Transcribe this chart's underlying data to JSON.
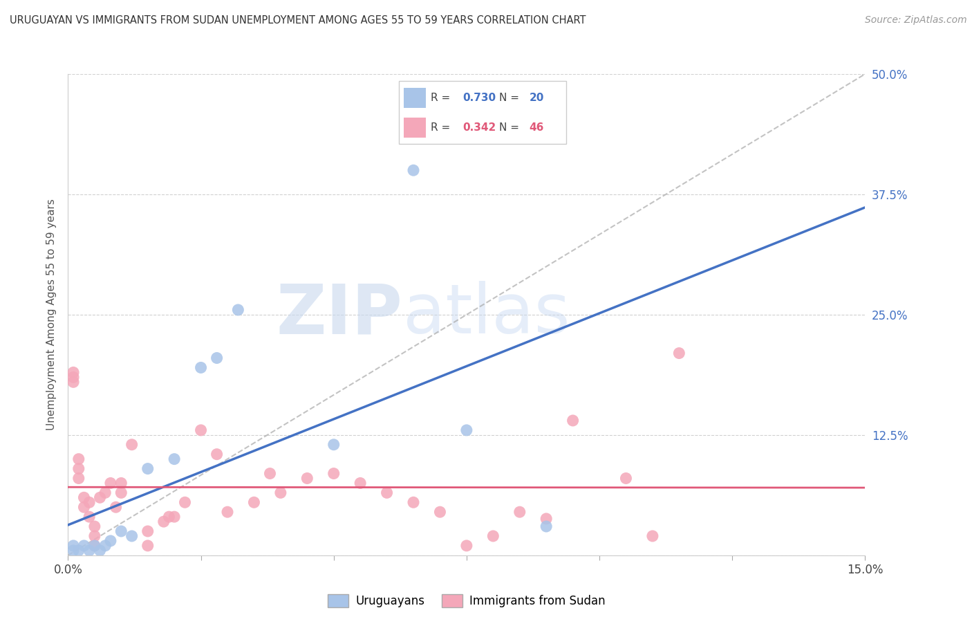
{
  "title": "URUGUAYAN VS IMMIGRANTS FROM SUDAN UNEMPLOYMENT AMONG AGES 55 TO 59 YEARS CORRELATION CHART",
  "source": "Source: ZipAtlas.com",
  "ylabel": "Unemployment Among Ages 55 to 59 years",
  "xlim": [
    0.0,
    0.15
  ],
  "ylim": [
    0.0,
    0.5
  ],
  "uruguayan_R": 0.73,
  "uruguayan_N": 20,
  "sudan_R": 0.342,
  "sudan_N": 46,
  "blue_color": "#a8c4e8",
  "blue_line_color": "#4472c4",
  "pink_color": "#f4a7b9",
  "pink_line_color": "#e05878",
  "watermark_zip": "ZIP",
  "watermark_atlas": "atlas",
  "uruguayan_x": [
    0.001,
    0.001,
    0.002,
    0.003,
    0.004,
    0.005,
    0.006,
    0.007,
    0.008,
    0.01,
    0.012,
    0.015,
    0.02,
    0.025,
    0.028,
    0.032,
    0.05,
    0.065,
    0.075,
    0.09
  ],
  "uruguayan_y": [
    0.005,
    0.01,
    0.005,
    0.01,
    0.005,
    0.01,
    0.005,
    0.01,
    0.015,
    0.025,
    0.02,
    0.09,
    0.1,
    0.195,
    0.205,
    0.255,
    0.115,
    0.4,
    0.13,
    0.03
  ],
  "sudan_x": [
    0.001,
    0.001,
    0.001,
    0.002,
    0.002,
    0.002,
    0.003,
    0.003,
    0.004,
    0.004,
    0.005,
    0.005,
    0.005,
    0.006,
    0.007,
    0.008,
    0.009,
    0.01,
    0.01,
    0.012,
    0.015,
    0.015,
    0.018,
    0.019,
    0.02,
    0.022,
    0.025,
    0.028,
    0.03,
    0.035,
    0.038,
    0.04,
    0.045,
    0.05,
    0.055,
    0.06,
    0.065,
    0.07,
    0.075,
    0.08,
    0.085,
    0.09,
    0.095,
    0.105,
    0.11,
    0.115
  ],
  "sudan_y": [
    0.18,
    0.185,
    0.19,
    0.09,
    0.08,
    0.1,
    0.05,
    0.06,
    0.04,
    0.055,
    0.01,
    0.02,
    0.03,
    0.06,
    0.065,
    0.075,
    0.05,
    0.065,
    0.075,
    0.115,
    0.01,
    0.025,
    0.035,
    0.04,
    0.04,
    0.055,
    0.13,
    0.105,
    0.045,
    0.055,
    0.085,
    0.065,
    0.08,
    0.085,
    0.075,
    0.065,
    0.055,
    0.045,
    0.01,
    0.02,
    0.045,
    0.038,
    0.14,
    0.08,
    0.02,
    0.21
  ]
}
